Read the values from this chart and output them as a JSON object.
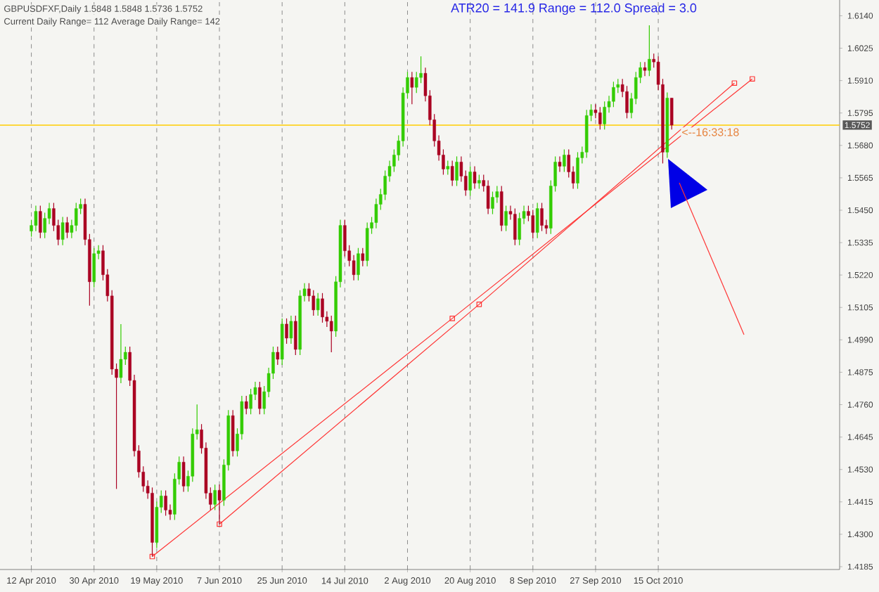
{
  "chart_data": {
    "type": "candlestick",
    "title": "GBPUSDFXF,Daily  1.5848 1.5848 1.5736 1.5752",
    "subtitle": "Current Daily Range= 112    Average Daily Range= 142",
    "annotations": [
      "ATR20 = 141.9 Range = 112.0 Spread = 3.0",
      {
        "text": "<--16:33:18",
        "y": 1.5752
      }
    ],
    "categories": [
      "12 Apr 2010",
      null,
      null,
      null,
      null,
      null,
      null,
      null,
      null,
      null,
      null,
      null,
      null,
      null,
      "30 Apr 2010",
      null,
      null,
      null,
      null,
      null,
      null,
      null,
      null,
      null,
      null,
      null,
      null,
      null,
      "19 May 2010",
      null,
      null,
      null,
      null,
      null,
      null,
      null,
      null,
      null,
      null,
      null,
      null,
      null,
      "7 Jun 2010",
      null,
      null,
      null,
      null,
      null,
      null,
      null,
      null,
      null,
      null,
      null,
      null,
      null,
      "25 Jun 2010",
      null,
      null,
      null,
      null,
      null,
      null,
      null,
      null,
      null,
      null,
      null,
      null,
      null,
      "14 Jul 2010",
      null,
      null,
      null,
      null,
      null,
      null,
      null,
      null,
      null,
      null,
      null,
      null,
      null,
      "2 Aug 2010",
      null,
      null,
      null,
      null,
      null,
      null,
      null,
      null,
      null,
      null,
      null,
      null,
      null,
      "20 Aug 2010",
      null,
      null,
      null,
      null,
      null,
      null,
      null,
      null,
      null,
      null,
      null,
      null,
      null,
      "8 Sep 2010",
      null,
      null,
      null,
      null,
      null,
      null,
      null,
      null,
      null,
      null,
      null,
      null,
      null,
      "27 Sep 2010",
      null,
      null,
      null,
      null,
      null,
      null,
      null,
      null,
      null,
      null,
      null,
      null,
      null,
      "15 Oct 2010",
      null,
      null,
      null,
      null,
      null,
      null,
      null,
      null,
      null,
      null,
      null,
      null,
      null,
      null,
      null,
      null,
      null,
      null,
      null,
      null,
      null,
      null,
      null,
      null,
      null,
      null,
      null,
      null,
      null,
      null,
      null,
      null,
      null,
      null,
      null,
      null,
      null,
      null,
      null,
      null
    ],
    "ohlc": [
      [
        1.5376,
        1.5416,
        1.5356,
        1.5396
      ],
      [
        1.5396,
        1.5466,
        1.5376,
        1.5446
      ],
      [
        1.5446,
        1.5466,
        1.5351,
        1.5371
      ],
      [
        1.5371,
        1.5441,
        1.5351,
        1.5421
      ],
      [
        1.5421,
        1.5476,
        1.5401,
        1.5456
      ],
      [
        1.5456,
        1.5476,
        1.5376,
        1.5396
      ],
      [
        1.5396,
        1.5416,
        1.5326,
        1.5346
      ],
      [
        1.5346,
        1.5426,
        1.5326,
        1.5406
      ],
      [
        1.5406,
        1.5426,
        1.5351,
        1.5371
      ],
      [
        1.5371,
        1.5416,
        1.5351,
        1.5396
      ],
      [
        1.5396,
        1.5476,
        1.5376,
        1.5456
      ],
      [
        1.5456,
        1.5491,
        1.5436,
        1.5471
      ],
      [
        1.5471,
        1.5491,
        1.5326,
        1.5346
      ],
      [
        1.5346,
        1.5366,
        1.5111,
        1.5196
      ],
      [
        1.5196,
        1.5316,
        1.5176,
        1.5296
      ],
      [
        1.5296,
        1.5326,
        1.5276,
        1.5306
      ],
      [
        1.5306,
        1.5326,
        1.5201,
        1.5221
      ],
      [
        1.5221,
        1.5241,
        1.5126,
        1.5146
      ],
      [
        1.5146,
        1.5166,
        1.4866,
        1.4886
      ],
      [
        1.4886,
        1.4906,
        1.4461,
        1.4856
      ],
      [
        1.4856,
        1.5046,
        1.4836,
        1.4921
      ],
      [
        1.4921,
        1.4966,
        1.4901,
        1.4946
      ],
      [
        1.4946,
        1.4966,
        1.4826,
        1.4846
      ],
      [
        1.4846,
        1.4866,
        1.4576,
        1.4596
      ],
      [
        1.4596,
        1.4616,
        1.4501,
        1.4521
      ],
      [
        1.4521,
        1.4541,
        1.4451,
        1.4471
      ],
      [
        1.4471,
        1.4491,
        1.4426,
        1.4446
      ],
      [
        1.4446,
        1.4466,
        1.4221,
        1.4271
      ],
      [
        1.4271,
        1.4416,
        1.4251,
        1.4396
      ],
      [
        1.4396,
        1.4456,
        1.4376,
        1.4436
      ],
      [
        1.4436,
        1.4456,
        1.4366,
        1.4386
      ],
      [
        1.4386,
        1.4406,
        1.4351,
        1.4371
      ],
      [
        1.4371,
        1.4516,
        1.4351,
        1.4496
      ],
      [
        1.4496,
        1.4576,
        1.4476,
        1.4556
      ],
      [
        1.4556,
        1.4576,
        1.4451,
        1.4471
      ],
      [
        1.4471,
        1.4526,
        1.4451,
        1.4506
      ],
      [
        1.4506,
        1.4676,
        1.4486,
        1.4656
      ],
      [
        1.4656,
        1.4761,
        1.4636,
        1.4671
      ],
      [
        1.4671,
        1.4691,
        1.4586,
        1.4606
      ],
      [
        1.4606,
        1.4626,
        1.4426,
        1.4446
      ],
      [
        1.4446,
        1.4466,
        1.4386,
        1.4406
      ],
      [
        1.4406,
        1.4476,
        1.4386,
        1.4456
      ],
      [
        1.4456,
        1.4476,
        1.4336,
        1.4421
      ],
      [
        1.4421,
        1.4566,
        1.4401,
        1.4546
      ],
      [
        1.4546,
        1.4741,
        1.4526,
        1.4721
      ],
      [
        1.4721,
        1.4741,
        1.4576,
        1.4596
      ],
      [
        1.4596,
        1.4676,
        1.4576,
        1.4656
      ],
      [
        1.4656,
        1.4791,
        1.4636,
        1.4771
      ],
      [
        1.4771,
        1.4791,
        1.4726,
        1.4746
      ],
      [
        1.4746,
        1.4816,
        1.4726,
        1.4796
      ],
      [
        1.4796,
        1.4841,
        1.4776,
        1.4821
      ],
      [
        1.4821,
        1.4841,
        1.4726,
        1.4746
      ],
      [
        1.4746,
        1.4826,
        1.4726,
        1.4806
      ],
      [
        1.4806,
        1.4891,
        1.4786,
        1.4871
      ],
      [
        1.4871,
        1.4966,
        1.4851,
        1.4946
      ],
      [
        1.4946,
        1.4966,
        1.4901,
        1.4921
      ],
      [
        1.4921,
        1.5066,
        1.4901,
        1.5046
      ],
      [
        1.5046,
        1.5066,
        1.4976,
        1.4996
      ],
      [
        1.4996,
        1.5076,
        1.4976,
        1.5056
      ],
      [
        1.5056,
        1.5076,
        1.4936,
        1.4956
      ],
      [
        1.4956,
        1.5166,
        1.4936,
        1.5146
      ],
      [
        1.5146,
        1.5191,
        1.5126,
        1.5171
      ],
      [
        1.5171,
        1.5191,
        1.5126,
        1.5146
      ],
      [
        1.5146,
        1.5166,
        1.5076,
        1.5096
      ],
      [
        1.5096,
        1.5156,
        1.5076,
        1.5136
      ],
      [
        1.5136,
        1.5156,
        1.5051,
        1.5071
      ],
      [
        1.5071,
        1.5091,
        1.5036,
        1.5056
      ],
      [
        1.5056,
        1.5076,
        1.4946,
        1.5021
      ],
      [
        1.5021,
        1.5216,
        1.5001,
        1.5196
      ],
      [
        1.5196,
        1.5416,
        1.5176,
        1.5396
      ],
      [
        1.5396,
        1.5416,
        1.5286,
        1.5306
      ],
      [
        1.5306,
        1.5326,
        1.5251,
        1.5271
      ],
      [
        1.5271,
        1.5291,
        1.5201,
        1.5221
      ],
      [
        1.5221,
        1.5316,
        1.5201,
        1.5296
      ],
      [
        1.5296,
        1.5316,
        1.5251,
        1.5271
      ],
      [
        1.5271,
        1.5406,
        1.5251,
        1.5386
      ],
      [
        1.5386,
        1.5426,
        1.5366,
        1.5406
      ],
      [
        1.5406,
        1.5491,
        1.5386,
        1.5471
      ],
      [
        1.5471,
        1.5526,
        1.5451,
        1.5506
      ],
      [
        1.5506,
        1.5591,
        1.5486,
        1.5571
      ],
      [
        1.5571,
        1.5626,
        1.5551,
        1.5606
      ],
      [
        1.5606,
        1.5666,
        1.5586,
        1.5646
      ],
      [
        1.5646,
        1.5716,
        1.5626,
        1.5696
      ],
      [
        1.5696,
        1.5886,
        1.5676,
        1.5866
      ],
      [
        1.5866,
        1.5941,
        1.5846,
        1.5921
      ],
      [
        1.5921,
        1.5941,
        1.5826,
        1.5886
      ],
      [
        1.5886,
        1.5941,
        1.5866,
        1.5921
      ],
      [
        1.5921,
        1.5996,
        1.5901,
        1.5936
      ],
      [
        1.5936,
        1.5956,
        1.5836,
        1.5856
      ],
      [
        1.5856,
        1.5876,
        1.5751,
        1.5771
      ],
      [
        1.5771,
        1.5791,
        1.5676,
        1.5696
      ],
      [
        1.5696,
        1.5716,
        1.5626,
        1.5646
      ],
      [
        1.5646,
        1.5666,
        1.5576,
        1.5596
      ],
      [
        1.5596,
        1.5626,
        1.5576,
        1.5606
      ],
      [
        1.5606,
        1.5626,
        1.5536,
        1.5556
      ],
      [
        1.5556,
        1.5641,
        1.5536,
        1.5621
      ],
      [
        1.5621,
        1.5641,
        1.5551,
        1.5571
      ],
      [
        1.5571,
        1.5591,
        1.5501,
        1.5521
      ],
      [
        1.5521,
        1.5606,
        1.5501,
        1.5586
      ],
      [
        1.5586,
        1.5606,
        1.5526,
        1.5546
      ],
      [
        1.5546,
        1.5576,
        1.5526,
        1.5556
      ],
      [
        1.5556,
        1.5576,
        1.5516,
        1.5536
      ],
      [
        1.5536,
        1.5556,
        1.5436,
        1.5456
      ],
      [
        1.5456,
        1.5516,
        1.5436,
        1.5496
      ],
      [
        1.5496,
        1.5536,
        1.5476,
        1.5516
      ],
      [
        1.5516,
        1.5536,
        1.5376,
        1.5396
      ],
      [
        1.5396,
        1.5466,
        1.5376,
        1.5446
      ],
      [
        1.5446,
        1.5466,
        1.5416,
        1.5436
      ],
      [
        1.5436,
        1.5456,
        1.5326,
        1.5346
      ],
      [
        1.5346,
        1.5441,
        1.5326,
        1.5421
      ],
      [
        1.5421,
        1.5466,
        1.5401,
        1.5446
      ],
      [
        1.5446,
        1.5466,
        1.5411,
        1.5431
      ],
      [
        1.5431,
        1.5451,
        1.5351,
        1.5371
      ],
      [
        1.5371,
        1.5476,
        1.5351,
        1.5456
      ],
      [
        1.5456,
        1.5476,
        1.5376,
        1.5396
      ],
      [
        1.5396,
        1.5416,
        1.5366,
        1.5386
      ],
      [
        1.5386,
        1.5556,
        1.5366,
        1.5536
      ],
      [
        1.5536,
        1.5641,
        1.5516,
        1.5621
      ],
      [
        1.5621,
        1.5641,
        1.5586,
        1.5606
      ],
      [
        1.5606,
        1.5666,
        1.5586,
        1.5646
      ],
      [
        1.5646,
        1.5666,
        1.5566,
        1.5586
      ],
      [
        1.5586,
        1.5606,
        1.5526,
        1.5546
      ],
      [
        1.5546,
        1.5656,
        1.5526,
        1.5636
      ],
      [
        1.5636,
        1.5676,
        1.5616,
        1.5656
      ],
      [
        1.5656,
        1.5806,
        1.5636,
        1.5786
      ],
      [
        1.5786,
        1.5826,
        1.5766,
        1.5806
      ],
      [
        1.5806,
        1.5826,
        1.5776,
        1.5796
      ],
      [
        1.5796,
        1.5816,
        1.5736,
        1.5756
      ],
      [
        1.5756,
        1.5836,
        1.5736,
        1.5816
      ],
      [
        1.5816,
        1.5856,
        1.5796,
        1.5836
      ],
      [
        1.5836,
        1.5906,
        1.5816,
        1.5886
      ],
      [
        1.5886,
        1.5916,
        1.5866,
        1.5896
      ],
      [
        1.5896,
        1.5916,
        1.5851,
        1.5871
      ],
      [
        1.5871,
        1.5891,
        1.5776,
        1.5796
      ],
      [
        1.5796,
        1.5866,
        1.5776,
        1.5846
      ],
      [
        1.5846,
        1.5941,
        1.5826,
        1.5921
      ],
      [
        1.5921,
        1.5976,
        1.5901,
        1.5956
      ],
      [
        1.5956,
        1.5976,
        1.5926,
        1.5946
      ],
      [
        1.5946,
        1.6106,
        1.5926,
        1.5986
      ],
      [
        1.5986,
        1.6006,
        1.5956,
        1.5976
      ],
      [
        1.5976,
        1.5996,
        1.5876,
        1.5896
      ],
      [
        1.5896,
        1.5916,
        1.5616,
        1.5656
      ],
      [
        1.5656,
        1.5868,
        1.5636,
        1.5848
      ],
      [
        1.5848,
        1.5848,
        1.5736,
        1.5752
      ],
      null,
      null,
      null,
      null,
      null,
      null,
      null,
      null,
      null,
      null,
      null,
      null,
      null,
      null,
      null,
      null,
      null,
      null,
      null,
      null,
      null,
      null,
      null,
      null,
      null,
      null,
      null,
      null,
      null,
      null,
      null,
      null,
      null,
      null,
      null,
      null,
      null
    ],
    "series": [
      {
        "type": "line",
        "color": "#ff3333",
        "marker": "square",
        "values": [
          null,
          null,
          null,
          null,
          null,
          null,
          null,
          null,
          null,
          null,
          null,
          null,
          null,
          null,
          null,
          null,
          null,
          null,
          null,
          null,
          null,
          null,
          null,
          null,
          null,
          null,
          null,
          1.4221,
          null,
          null,
          null,
          null,
          null,
          null,
          null,
          null,
          null,
          null,
          null,
          null,
          null,
          null,
          null,
          null,
          null,
          null,
          null,
          null,
          null,
          null,
          null,
          null,
          null,
          null,
          null,
          null,
          null,
          null,
          null,
          null,
          null,
          null,
          null,
          null,
          null,
          null,
          null,
          null,
          null,
          null,
          null,
          null,
          null,
          null,
          null,
          null,
          null,
          null,
          null,
          null,
          null,
          null,
          null,
          null,
          null,
          null,
          null,
          null,
          null,
          null,
          null,
          null,
          null,
          null,
          1.5066,
          null,
          null,
          null,
          null,
          null,
          null,
          null,
          null,
          null,
          null,
          null,
          null,
          null,
          null,
          null,
          null,
          null,
          null,
          null,
          null,
          null,
          null,
          null,
          null,
          null,
          null,
          null,
          null,
          null,
          null,
          null,
          null,
          null,
          null,
          null,
          null,
          null,
          null,
          null,
          null,
          null,
          null,
          null,
          null,
          null,
          null,
          null,
          null,
          null,
          null,
          null,
          null,
          null,
          null,
          null,
          null,
          null,
          null,
          null,
          null,
          null,
          null,
          null,
          null,
          null,
          null,
          1.5916,
          null,
          null,
          null,
          null,
          null,
          null,
          null,
          null,
          null,
          null,
          null,
          null,
          null,
          null,
          null,
          null,
          null,
          null,
          null
        ]
      },
      {
        "type": "line",
        "color": "#ff3333",
        "marker": "square",
        "values": [
          null,
          null,
          null,
          null,
          null,
          null,
          null,
          null,
          null,
          null,
          null,
          null,
          null,
          null,
          null,
          null,
          null,
          null,
          null,
          null,
          null,
          null,
          null,
          null,
          null,
          null,
          null,
          null,
          null,
          null,
          null,
          null,
          null,
          null,
          null,
          null,
          null,
          null,
          null,
          null,
          null,
          null,
          1.4336,
          null,
          null,
          null,
          null,
          null,
          null,
          null,
          null,
          null,
          null,
          null,
          null,
          null,
          null,
          null,
          null,
          null,
          null,
          null,
          null,
          null,
          null,
          null,
          null,
          null,
          null,
          null,
          null,
          null,
          null,
          null,
          null,
          null,
          null,
          null,
          null,
          null,
          null,
          null,
          null,
          null,
          null,
          null,
          null,
          null,
          null,
          null,
          null,
          null,
          null,
          null,
          null,
          null,
          null,
          null,
          null,
          null,
          1.5116,
          null,
          null,
          null,
          null,
          null,
          null,
          null,
          null,
          null,
          null,
          null,
          null,
          null,
          null,
          null,
          null,
          null,
          null,
          null,
          null,
          null,
          null,
          null,
          null,
          null,
          null,
          null,
          null,
          null,
          null,
          null,
          null,
          null,
          null,
          null,
          null,
          null,
          null,
          null,
          null,
          null,
          null,
          null,
          null,
          null,
          null,
          null,
          null,
          null,
          null,
          null,
          null,
          null,
          null,
          null,
          null,
          1.5901,
          null,
          null,
          null,
          null,
          null,
          null,
          null,
          null,
          null,
          null,
          null,
          null,
          null,
          null,
          null,
          null,
          null,
          null,
          null,
          null,
          null,
          null,
          null
        ]
      }
    ],
    "ylim": [
      1.4175,
      1.6196
    ],
    "yticks": [
      {
        "value": 1.4185,
        "label": "1.4185"
      },
      {
        "value": 1.43,
        "label": "1.4300"
      },
      {
        "value": 1.4415,
        "label": "1.4415"
      },
      {
        "value": 1.453,
        "label": "1.4530"
      },
      {
        "value": 1.4645,
        "label": "1.4645"
      },
      {
        "value": 1.476,
        "label": "1.4760"
      },
      {
        "value": 1.4875,
        "label": "1.4875"
      },
      {
        "value": 1.499,
        "label": "1.4990"
      },
      {
        "value": 1.5105,
        "label": "1.5105"
      },
      {
        "value": 1.522,
        "label": "1.5220"
      },
      {
        "value": 1.5335,
        "label": "1.5335"
      },
      {
        "value": 1.545,
        "label": "1.5450"
      },
      {
        "value": 1.5565,
        "label": "1.5565"
      },
      {
        "value": 1.568,
        "label": "1.5680"
      },
      {
        "value": 1.5795,
        "label": "1.5795"
      },
      {
        "value": 1.591,
        "label": "1.5910"
      },
      {
        "value": 1.6025,
        "label": "1.6025"
      },
      {
        "value": 1.614,
        "label": "1.6140"
      }
    ],
    "ref_lines": [
      {
        "axis": "y",
        "value": 1.5752,
        "label": "1.5752",
        "color": "#ffcc00"
      }
    ],
    "grid": "x"
  }
}
